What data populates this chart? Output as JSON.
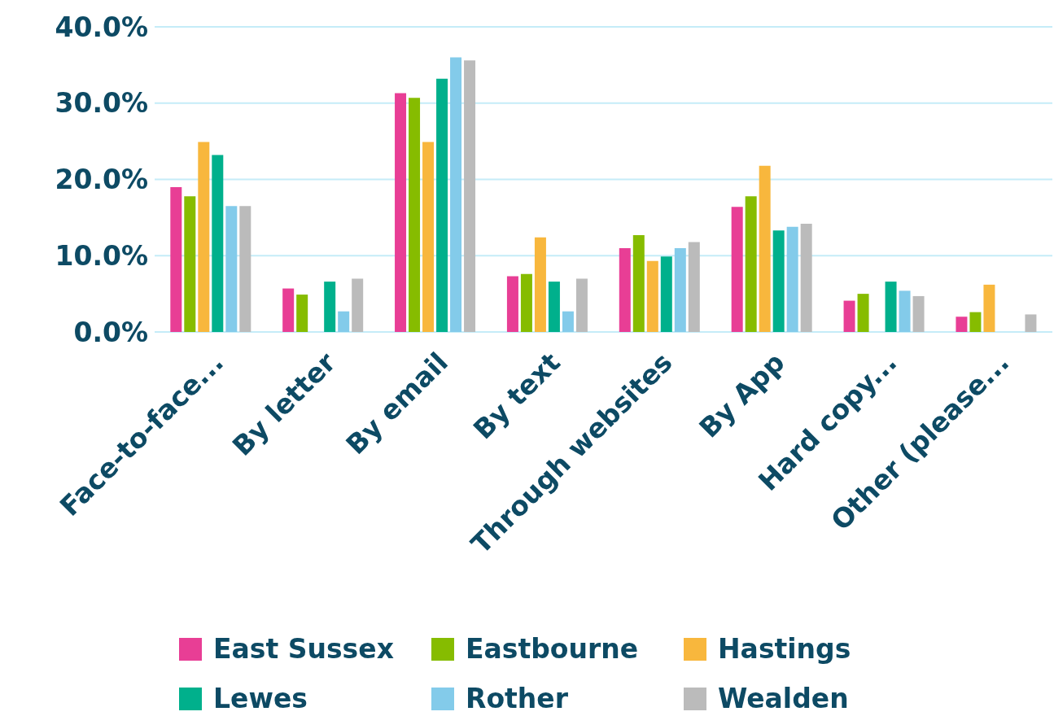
{
  "chart_data": {
    "type": "bar",
    "categories": [
      "Face-to-face...",
      "By letter",
      "By email",
      "By text",
      "Through websites",
      "By App",
      "Hard copy...",
      "Other (please..."
    ],
    "series": [
      {
        "name": "East Sussex",
        "color": "#e83e95",
        "values": [
          19.0,
          5.7,
          31.3,
          7.3,
          11.0,
          16.4,
          4.1,
          2.0
        ]
      },
      {
        "name": "Eastbourne",
        "color": "#86bc00",
        "values": [
          17.8,
          4.9,
          30.7,
          7.6,
          12.7,
          17.8,
          5.0,
          2.6
        ]
      },
      {
        "name": "Hastings",
        "color": "#f8b73d",
        "values": [
          24.9,
          null,
          24.9,
          12.4,
          9.3,
          21.8,
          null,
          6.2
        ]
      },
      {
        "name": "Lewes",
        "color": "#00b08c",
        "values": [
          23.2,
          6.6,
          33.2,
          6.6,
          9.9,
          13.3,
          6.6,
          null
        ]
      },
      {
        "name": "Rother",
        "color": "#83cbea",
        "values": [
          16.5,
          2.7,
          36.0,
          2.7,
          11.0,
          13.8,
          5.4,
          null
        ]
      },
      {
        "name": "Wealden",
        "color": "#bbbbbb",
        "values": [
          16.5,
          7.0,
          35.6,
          7.0,
          11.8,
          14.2,
          4.7,
          2.3
        ]
      }
    ],
    "ylim": [
      0,
      40
    ],
    "yticks": [
      {
        "value": 0,
        "label": "0.0%"
      },
      {
        "value": 10,
        "label": "10.0%"
      },
      {
        "value": 20,
        "label": "20.0%"
      },
      {
        "value": 30,
        "label": "30.0%"
      },
      {
        "value": 40,
        "label": "40.0%"
      }
    ],
    "grid": "y",
    "legend": "bottom"
  }
}
